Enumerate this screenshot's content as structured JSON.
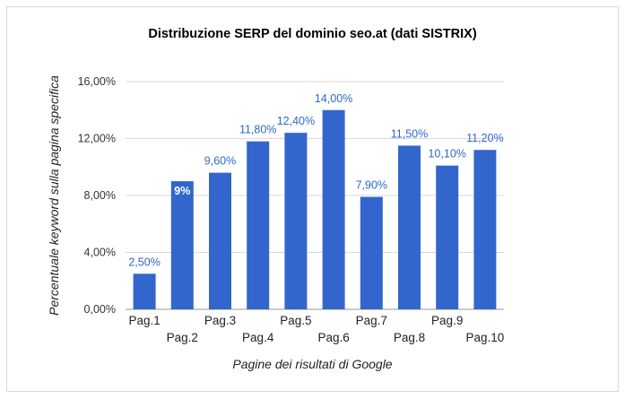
{
  "chart_data": {
    "type": "bar",
    "title": "Distribuzione SERP del dominio seo.at (dati SISTRIX)",
    "xlabel": "Pagine dei risultati di Google",
    "ylabel": "Percentuale keyword sulla pagina specifica",
    "categories": [
      "Pag.1",
      "Pag.2",
      "Pag.3",
      "Pag.4",
      "Pag.5",
      "Pag.6",
      "Pag.7",
      "Pag.8",
      "Pag.9",
      "Pag.10"
    ],
    "values": [
      2.5,
      9,
      9.6,
      11.8,
      12.4,
      14,
      7.9,
      11.5,
      10.1,
      11.2
    ],
    "data_labels": [
      "2,50%",
      "9%",
      "9,60%",
      "11,80%",
      "12,40%",
      "14,00%",
      "7,90%",
      "11,50%",
      "10,10%",
      "11,20%"
    ],
    "data_label_inside": [
      false,
      true,
      false,
      false,
      false,
      false,
      false,
      false,
      false,
      false
    ],
    "yticks": [
      0,
      4,
      8,
      12,
      16
    ],
    "ytick_labels": [
      "0,00%",
      "4,00%",
      "8,00%",
      "12,00%",
      "16,00%"
    ],
    "ylim": [
      0,
      16
    ],
    "grid": true,
    "colors": {
      "bar": "#3366cc",
      "label": "#3366cc",
      "label_inside": "#ffffff",
      "grid": "#d9d9d9"
    }
  }
}
